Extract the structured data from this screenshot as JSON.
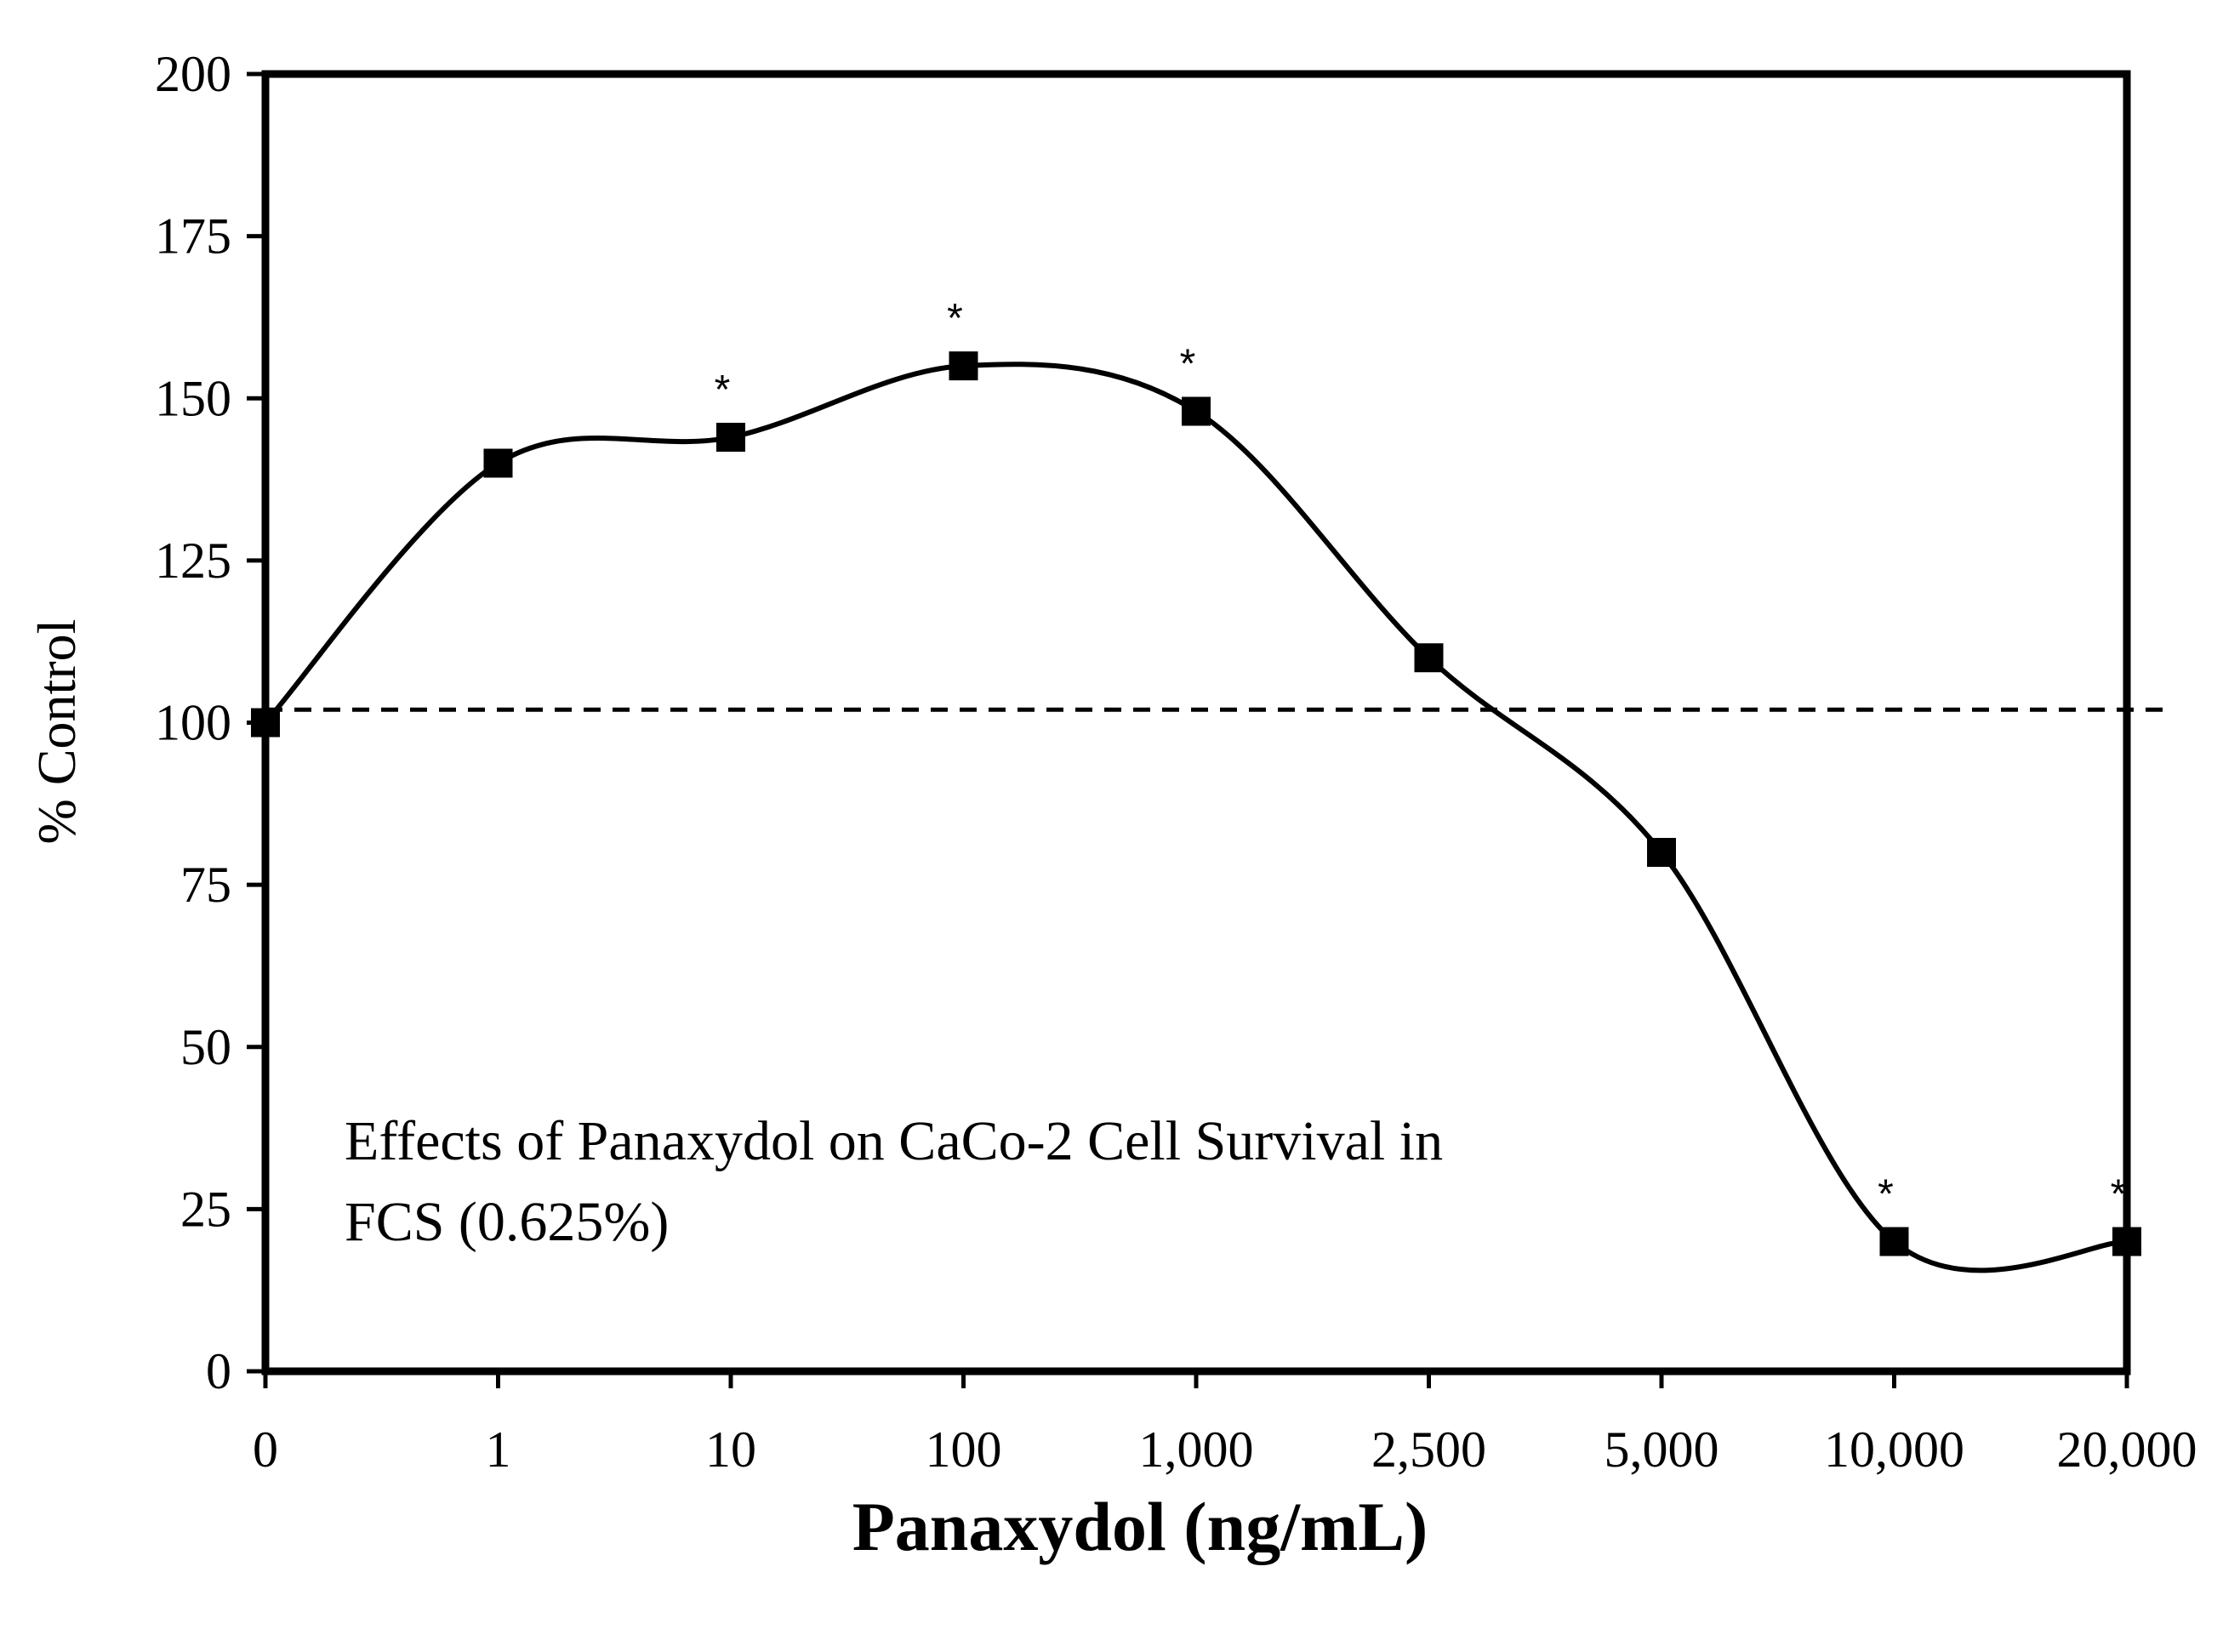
{
  "chart_data": {
    "type": "line",
    "title": "",
    "xlabel": "Panaxydol (ng/mL)",
    "ylabel": "% Control",
    "categories": [
      "0",
      "1",
      "10",
      "100",
      "1,000",
      "2,500",
      "5,000",
      "10,000",
      "20,000"
    ],
    "series": [
      {
        "name": "CaCo-2 Cell Survival",
        "values": [
          100,
          140,
          144,
          155,
          148,
          110,
          80,
          20,
          20
        ],
        "significant": [
          false,
          false,
          true,
          true,
          true,
          false,
          false,
          true,
          true
        ],
        "significance_marker": "*"
      }
    ],
    "ylim": [
      0,
      200
    ],
    "yticks": [
      0,
      25,
      50,
      75,
      100,
      125,
      150,
      175,
      200
    ],
    "reference_line": {
      "y": 102,
      "style": "dashed"
    },
    "annotation": {
      "line1": "Effects of Panaxydol on CaCo-2 Cell Survival in",
      "line2": "FCS (0.625%)",
      "position": "bottom-left"
    },
    "grid": false,
    "smooth": true,
    "marker": "square"
  }
}
